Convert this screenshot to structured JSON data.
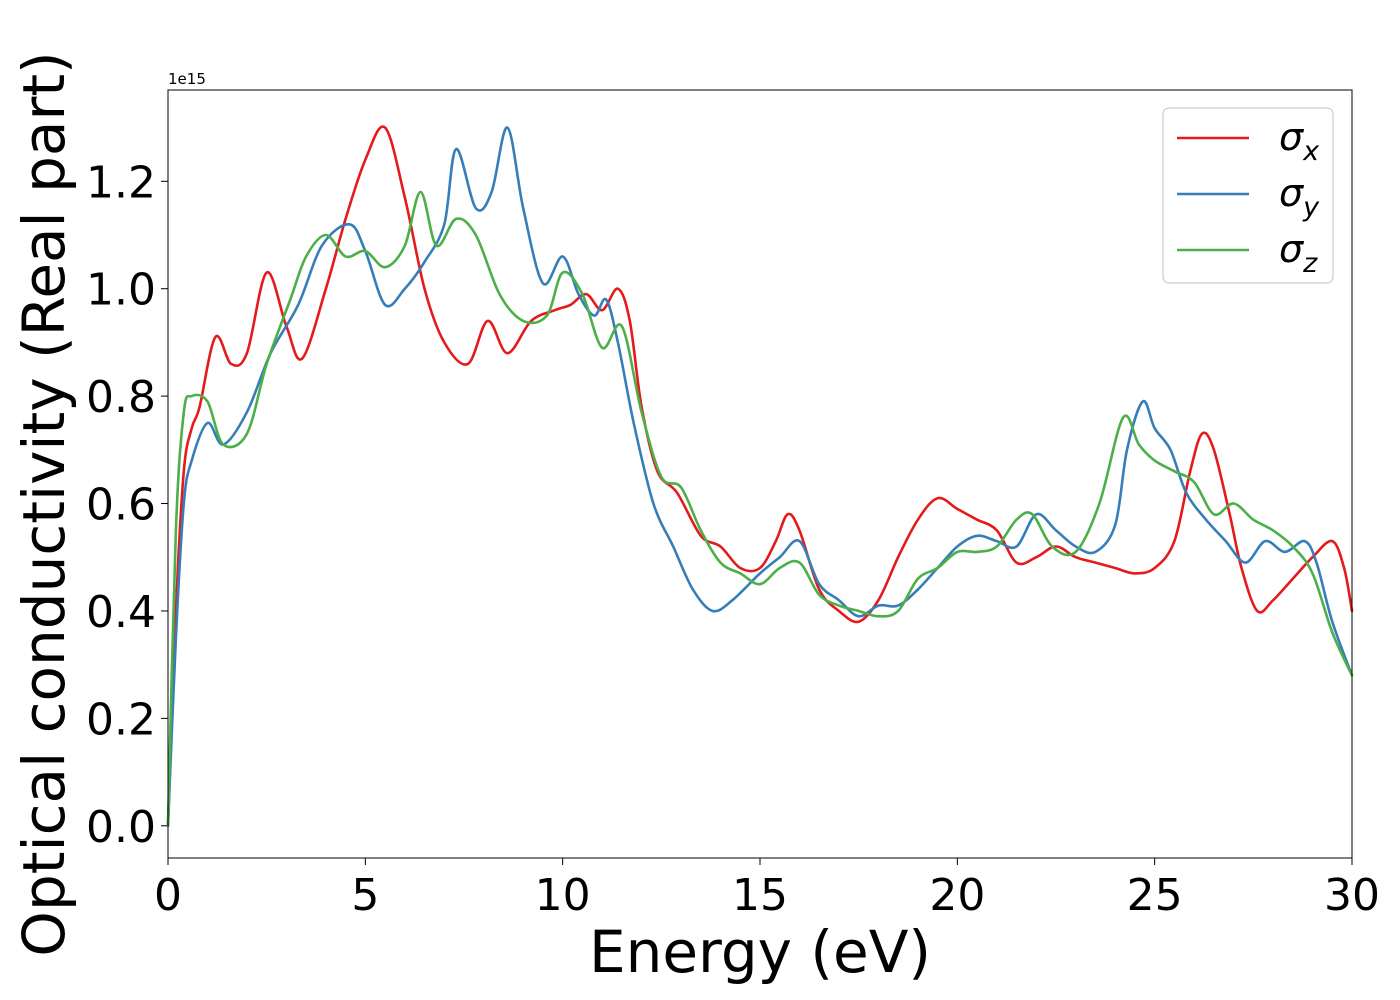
{
  "chart_data": {
    "type": "line",
    "xlabel": "Energy (eV)",
    "ylabel": "Optical conductivity (Real part)",
    "y_scale_label": "1e15",
    "y_multiplier": 1000000000000000.0,
    "xlim": [
      0,
      30
    ],
    "ylim": [
      -0.06,
      1.37
    ],
    "x_ticks": [
      0,
      5,
      10,
      15,
      20,
      25,
      30
    ],
    "x_tick_labels": [
      "0",
      "5",
      "10",
      "15",
      "20",
      "25",
      "30"
    ],
    "y_ticks": [
      0.0,
      0.2,
      0.4,
      0.6,
      0.8,
      1.0,
      1.2
    ],
    "y_tick_labels": [
      "0.0",
      "0.2",
      "0.4",
      "0.6",
      "0.8",
      "1.0",
      "1.2"
    ],
    "grid": false,
    "legend_position": "top-right",
    "series": [
      {
        "name": "σx",
        "legend_base": "σ",
        "legend_sub": "x",
        "color": "#e41a1c",
        "points": [
          [
            0,
            0
          ],
          [
            0.2,
            0.4
          ],
          [
            0.4,
            0.66
          ],
          [
            0.6,
            0.74
          ],
          [
            0.8,
            0.78
          ],
          [
            1.2,
            0.91
          ],
          [
            1.6,
            0.86
          ],
          [
            2.0,
            0.88
          ],
          [
            2.5,
            1.03
          ],
          [
            3.0,
            0.93
          ],
          [
            3.4,
            0.87
          ],
          [
            4.0,
            1.0
          ],
          [
            4.5,
            1.13
          ],
          [
            5.0,
            1.24
          ],
          [
            5.5,
            1.3
          ],
          [
            6.0,
            1.17
          ],
          [
            6.5,
            1.0
          ],
          [
            7.0,
            0.9
          ],
          [
            7.6,
            0.86
          ],
          [
            8.1,
            0.94
          ],
          [
            8.6,
            0.88
          ],
          [
            9.2,
            0.94
          ],
          [
            9.8,
            0.96
          ],
          [
            10.2,
            0.97
          ],
          [
            10.6,
            0.99
          ],
          [
            11.0,
            0.96
          ],
          [
            11.4,
            1.0
          ],
          [
            11.7,
            0.94
          ],
          [
            12.0,
            0.78
          ],
          [
            12.4,
            0.66
          ],
          [
            12.9,
            0.62
          ],
          [
            13.5,
            0.54
          ],
          [
            14.0,
            0.52
          ],
          [
            14.5,
            0.48
          ],
          [
            15.0,
            0.48
          ],
          [
            15.4,
            0.53
          ],
          [
            15.7,
            0.58
          ],
          [
            16.0,
            0.55
          ],
          [
            16.5,
            0.44
          ],
          [
            17.0,
            0.4
          ],
          [
            17.5,
            0.38
          ],
          [
            18.0,
            0.42
          ],
          [
            18.5,
            0.5
          ],
          [
            19.0,
            0.57
          ],
          [
            19.5,
            0.61
          ],
          [
            20.0,
            0.59
          ],
          [
            20.5,
            0.57
          ],
          [
            21.0,
            0.55
          ],
          [
            21.5,
            0.49
          ],
          [
            22.0,
            0.5
          ],
          [
            22.5,
            0.52
          ],
          [
            23.0,
            0.5
          ],
          [
            23.5,
            0.49
          ],
          [
            24.0,
            0.48
          ],
          [
            24.5,
            0.47
          ],
          [
            25.0,
            0.48
          ],
          [
            25.5,
            0.53
          ],
          [
            25.9,
            0.66
          ],
          [
            26.2,
            0.73
          ],
          [
            26.5,
            0.7
          ],
          [
            26.9,
            0.58
          ],
          [
            27.2,
            0.48
          ],
          [
            27.6,
            0.4
          ],
          [
            28.0,
            0.42
          ],
          [
            28.5,
            0.46
          ],
          [
            29.0,
            0.5
          ],
          [
            29.5,
            0.53
          ],
          [
            29.8,
            0.48
          ],
          [
            30.0,
            0.4
          ]
        ]
      },
      {
        "name": "σy",
        "legend_base": "σ",
        "legend_sub": "y",
        "color": "#377eb8",
        "points": [
          [
            0,
            0
          ],
          [
            0.2,
            0.35
          ],
          [
            0.4,
            0.6
          ],
          [
            0.6,
            0.68
          ],
          [
            1.0,
            0.75
          ],
          [
            1.4,
            0.71
          ],
          [
            2.0,
            0.77
          ],
          [
            2.6,
            0.88
          ],
          [
            3.3,
            0.97
          ],
          [
            3.9,
            1.08
          ],
          [
            4.6,
            1.12
          ],
          [
            5.0,
            1.07
          ],
          [
            5.5,
            0.97
          ],
          [
            6.0,
            1.0
          ],
          [
            6.5,
            1.05
          ],
          [
            7.0,
            1.12
          ],
          [
            7.3,
            1.26
          ],
          [
            7.8,
            1.15
          ],
          [
            8.2,
            1.18
          ],
          [
            8.6,
            1.3
          ],
          [
            9.0,
            1.15
          ],
          [
            9.5,
            1.01
          ],
          [
            10.0,
            1.06
          ],
          [
            10.4,
            0.99
          ],
          [
            10.8,
            0.95
          ],
          [
            11.1,
            0.98
          ],
          [
            11.4,
            0.9
          ],
          [
            11.8,
            0.75
          ],
          [
            12.3,
            0.6
          ],
          [
            12.8,
            0.52
          ],
          [
            13.3,
            0.44
          ],
          [
            13.8,
            0.4
          ],
          [
            14.3,
            0.42
          ],
          [
            15.0,
            0.47
          ],
          [
            15.5,
            0.5
          ],
          [
            16.0,
            0.53
          ],
          [
            16.5,
            0.45
          ],
          [
            17.0,
            0.42
          ],
          [
            17.5,
            0.39
          ],
          [
            18.0,
            0.41
          ],
          [
            18.5,
            0.41
          ],
          [
            19.0,
            0.44
          ],
          [
            19.5,
            0.48
          ],
          [
            20.0,
            0.52
          ],
          [
            20.5,
            0.54
          ],
          [
            21.0,
            0.53
          ],
          [
            21.5,
            0.52
          ],
          [
            22.0,
            0.58
          ],
          [
            22.5,
            0.55
          ],
          [
            23.0,
            0.52
          ],
          [
            23.5,
            0.51
          ],
          [
            24.0,
            0.56
          ],
          [
            24.3,
            0.7
          ],
          [
            24.7,
            0.79
          ],
          [
            25.0,
            0.74
          ],
          [
            25.4,
            0.7
          ],
          [
            25.8,
            0.62
          ],
          [
            26.3,
            0.57
          ],
          [
            26.8,
            0.53
          ],
          [
            27.3,
            0.49
          ],
          [
            27.8,
            0.53
          ],
          [
            28.3,
            0.51
          ],
          [
            28.8,
            0.53
          ],
          [
            29.1,
            0.49
          ],
          [
            29.5,
            0.38
          ],
          [
            30.0,
            0.28
          ]
        ]
      },
      {
        "name": "σz",
        "legend_base": "σ",
        "legend_sub": "z",
        "color": "#4daf4a",
        "points": [
          [
            0,
            0
          ],
          [
            0.2,
            0.55
          ],
          [
            0.4,
            0.77
          ],
          [
            0.6,
            0.8
          ],
          [
            1.0,
            0.79
          ],
          [
            1.4,
            0.71
          ],
          [
            2.0,
            0.73
          ],
          [
            2.5,
            0.86
          ],
          [
            3.1,
            0.98
          ],
          [
            3.5,
            1.06
          ],
          [
            4.0,
            1.1
          ],
          [
            4.5,
            1.06
          ],
          [
            5.0,
            1.07
          ],
          [
            5.5,
            1.04
          ],
          [
            6.0,
            1.08
          ],
          [
            6.4,
            1.18
          ],
          [
            6.8,
            1.08
          ],
          [
            7.3,
            1.13
          ],
          [
            7.8,
            1.1
          ],
          [
            8.4,
            0.99
          ],
          [
            9.0,
            0.94
          ],
          [
            9.6,
            0.95
          ],
          [
            10.0,
            1.03
          ],
          [
            10.5,
            0.99
          ],
          [
            11.0,
            0.89
          ],
          [
            11.5,
            0.93
          ],
          [
            12.0,
            0.77
          ],
          [
            12.5,
            0.65
          ],
          [
            13.0,
            0.63
          ],
          [
            13.5,
            0.55
          ],
          [
            14.0,
            0.49
          ],
          [
            14.5,
            0.47
          ],
          [
            15.0,
            0.45
          ],
          [
            15.5,
            0.48
          ],
          [
            16.0,
            0.49
          ],
          [
            16.5,
            0.43
          ],
          [
            17.0,
            0.41
          ],
          [
            17.5,
            0.4
          ],
          [
            18.0,
            0.39
          ],
          [
            18.5,
            0.4
          ],
          [
            19.0,
            0.46
          ],
          [
            19.5,
            0.48
          ],
          [
            20.0,
            0.51
          ],
          [
            20.5,
            0.51
          ],
          [
            21.0,
            0.52
          ],
          [
            21.5,
            0.57
          ],
          [
            21.9,
            0.58
          ],
          [
            22.4,
            0.52
          ],
          [
            23.0,
            0.51
          ],
          [
            23.6,
            0.6
          ],
          [
            24.2,
            0.76
          ],
          [
            24.6,
            0.71
          ],
          [
            25.0,
            0.68
          ],
          [
            25.5,
            0.66
          ],
          [
            26.0,
            0.64
          ],
          [
            26.5,
            0.58
          ],
          [
            27.0,
            0.6
          ],
          [
            27.5,
            0.57
          ],
          [
            28.0,
            0.55
          ],
          [
            28.5,
            0.52
          ],
          [
            29.0,
            0.47
          ],
          [
            29.5,
            0.36
          ],
          [
            30.0,
            0.28
          ]
        ]
      }
    ]
  }
}
